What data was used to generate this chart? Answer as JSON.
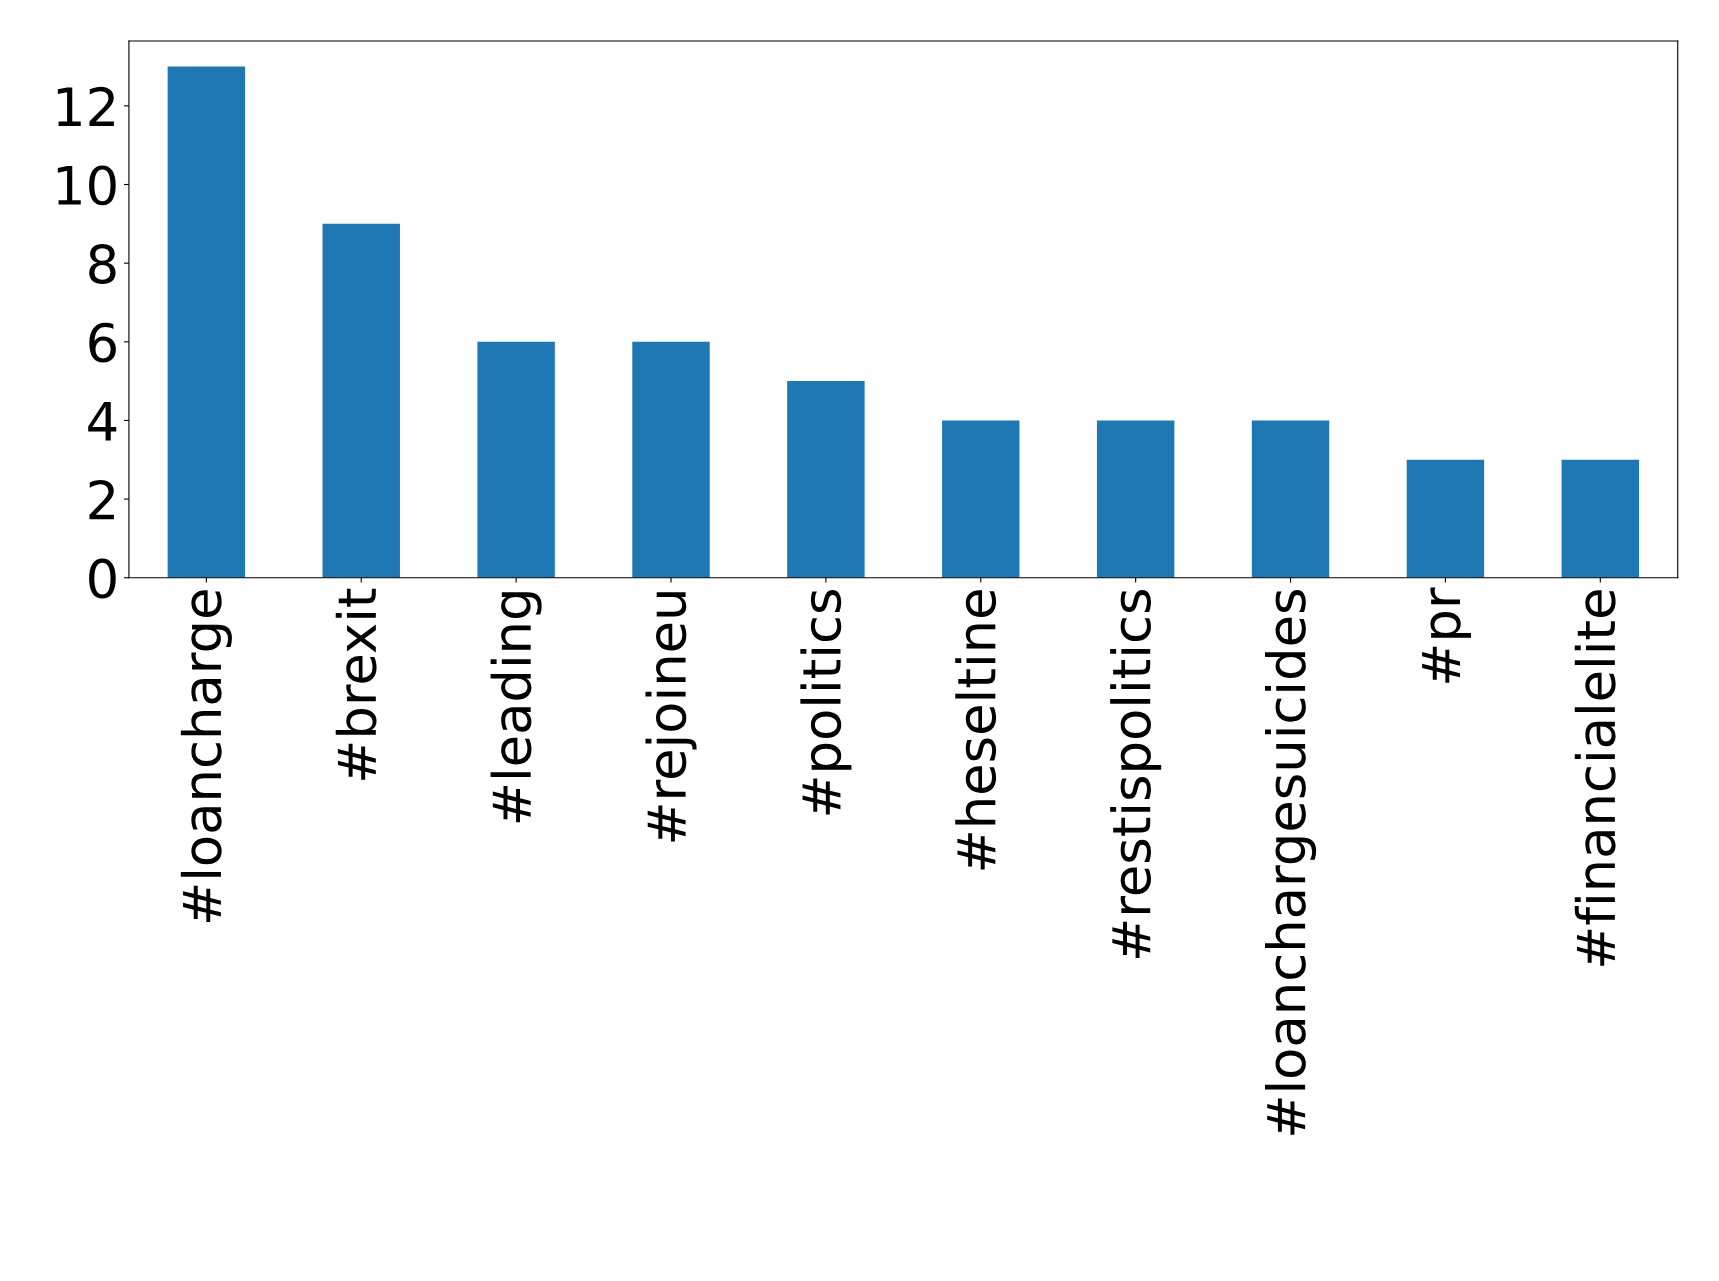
{
  "chart_data": {
    "type": "bar",
    "categories": [
      "#loancharge",
      "#brexit",
      "#leading",
      "#rejoineu",
      "#politics",
      "#heseltine",
      "#restispolitics",
      "#loanchargesuicides",
      "#pr",
      "#financialelite"
    ],
    "values": [
      13,
      9,
      6,
      6,
      5,
      4,
      4,
      4,
      3,
      3
    ],
    "color": "#1f77b4",
    "ylim": [
      0,
      13.65
    ],
    "yticks": [
      0,
      2,
      4,
      6,
      8,
      10,
      12
    ],
    "grid": false,
    "legend": false
  }
}
